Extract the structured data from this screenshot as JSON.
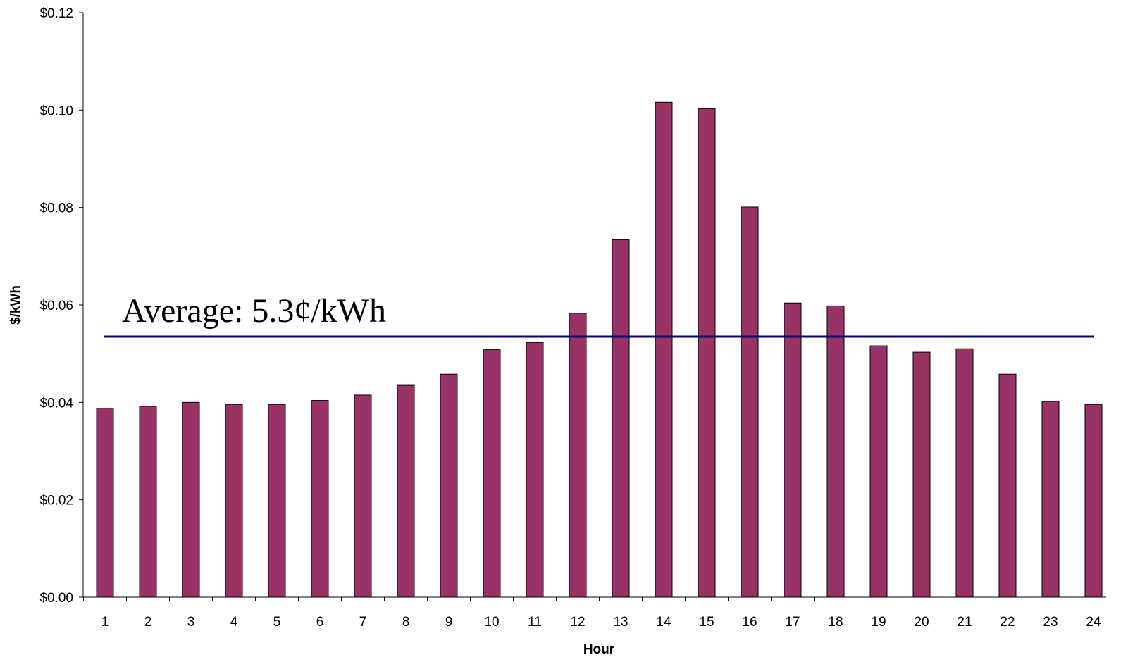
{
  "colors": {
    "bar_fill": "#993366",
    "bar_stroke": "#000000",
    "average_line": "#000080",
    "axis": "#000000"
  },
  "chart_data": {
    "type": "bar",
    "title": "",
    "xlabel": "Hour",
    "ylabel": "$/kWh",
    "categories": [
      "1",
      "2",
      "3",
      "4",
      "5",
      "6",
      "7",
      "8",
      "9",
      "10",
      "11",
      "12",
      "13",
      "14",
      "15",
      "16",
      "17",
      "18",
      "19",
      "20",
      "21",
      "22",
      "23",
      "24"
    ],
    "values": [
      0.0388,
      0.0392,
      0.04,
      0.0396,
      0.0396,
      0.0404,
      0.0415,
      0.0435,
      0.0458,
      0.0508,
      0.0523,
      0.0583,
      0.0734,
      0.1016,
      0.1003,
      0.0801,
      0.0604,
      0.0598,
      0.0516,
      0.0503,
      0.051,
      0.0458,
      0.0402,
      0.0396
    ],
    "ylim": [
      0,
      0.12
    ],
    "yticks": [
      0,
      0.02,
      0.04,
      0.06,
      0.08,
      0.1,
      0.12
    ],
    "ytick_labels": [
      "$0.00",
      "$0.02",
      "$0.04",
      "$0.06",
      "$0.08",
      "$0.10",
      "$0.12"
    ],
    "grid": false,
    "legend": "none",
    "average": {
      "value": 0.0535,
      "label": "Average: 5.3¢/kWh"
    }
  }
}
